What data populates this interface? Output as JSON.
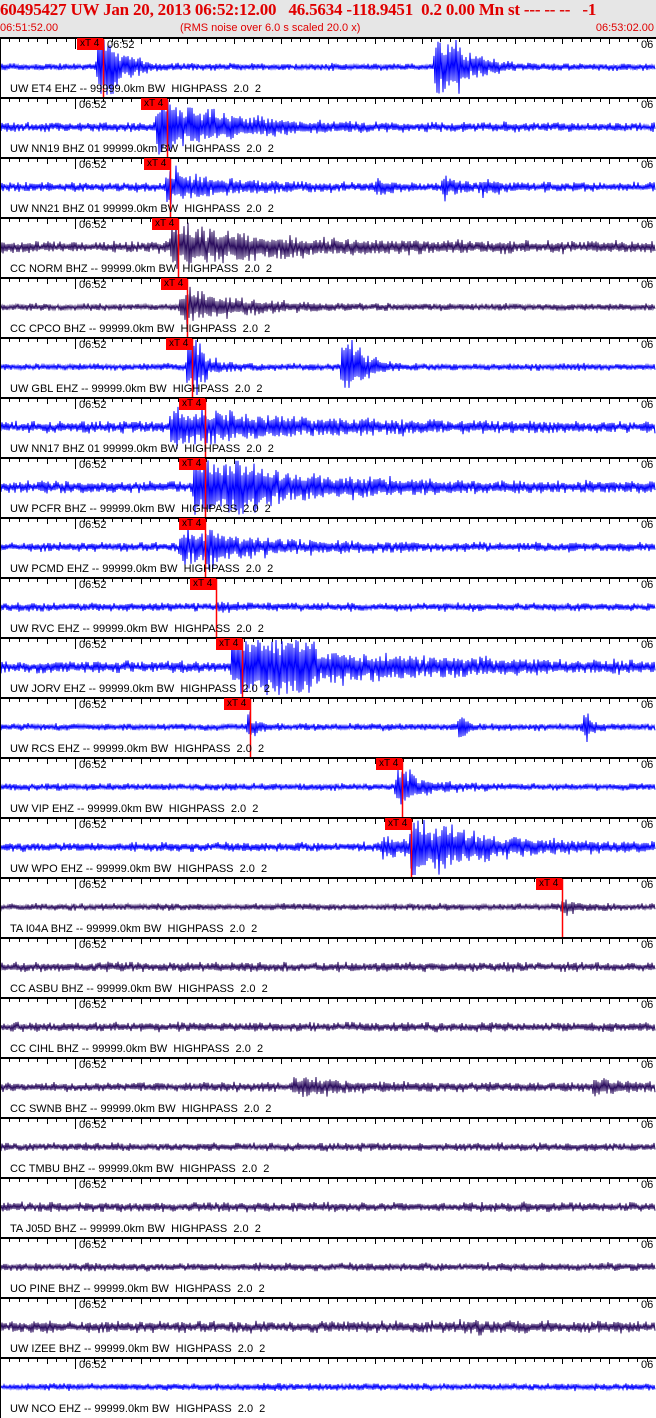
{
  "header": {
    "title": "60495427 UW Jan 20, 2013 06:52:12.00   46.5634 -118.9451  0.2 0.00 Mn st --- -- --   -1",
    "start_time": "06:51:52.00",
    "end_time": "06:53:02.00",
    "subtitle": "(RMS noise over 6.0 s scaled 20.0 x)"
  },
  "chart_data": {
    "type": "line",
    "title": "60495427 UW Jan 20, 2013 06:52:12.00",
    "xlim": [
      "06:51:52.00",
      "06:53:02.00"
    ],
    "tick_labels": {
      "minute": "06:52",
      "right": "06"
    },
    "colors": {
      "uw": "#0000ff",
      "network": "#2b0d5e",
      "pick": "#ff0000"
    },
    "traces": [
      {
        "label": "UW ET4 EHZ -- 99999.0km BW  HIGHPASS  2.0  2",
        "color": "#0000ff",
        "pick": {
          "label": "xT 4",
          "time": "06:52:03.0"
        }
      },
      {
        "label": "UW NN19 BHZ 01 99999.0km BW  HIGHPASS  2.0  2",
        "color": "#0000ff",
        "pick": {
          "label": "xT 4",
          "time": "06:52:09.8"
        }
      },
      {
        "label": "UW NN21 BHZ 01 99999.0km BW  HIGHPASS  2.0  2",
        "color": "#0000ff",
        "pick": {
          "label": "xT 4",
          "time": "06:52:10.1"
        }
      },
      {
        "label": "CC NORM BHZ -- 99999.0km BW  HIGHPASS  2.0  2",
        "color": "#2b0d5e",
        "pick": {
          "label": "xT 4",
          "time": "06:52:11.0"
        }
      },
      {
        "label": "CC CPCO BHZ -- 99999.0km BW  HIGHPASS  2.0  2",
        "color": "#2b0d5e",
        "pick": {
          "label": "xT 4",
          "time": "06:52:12.0"
        }
      },
      {
        "label": "UW GBL EHZ -- 99999.0km BW  HIGHPASS  2.0  2",
        "color": "#0000ff",
        "pick": {
          "label": "xT 4",
          "time": "06:52:12.5"
        }
      },
      {
        "label": "UW NN17 BHZ 01 99999.0km BW  HIGHPASS  2.0  2",
        "color": "#0000ff",
        "pick": {
          "label": "xT 4",
          "time": "06:52:13.9"
        }
      },
      {
        "label": "UW PCFR BHZ -- 99999.0km BW  HIGHPASS  2.0  2",
        "color": "#0000ff",
        "pick": {
          "label": "xT 4",
          "time": "06:52:13.9"
        }
      },
      {
        "label": "UW PCMD EHZ -- 99999.0km BW  HIGHPASS  2.0  2",
        "color": "#0000ff",
        "pick": {
          "label": "xT 4",
          "time": "06:52:13.9"
        }
      },
      {
        "label": "UW RVC EHZ -- 99999.0km BW  HIGHPASS  2.0  2",
        "color": "#0000ff",
        "pick": {
          "label": "xT 4",
          "time": "06:52:15.1"
        }
      },
      {
        "label": "UW JORV EHZ -- 99999.0km BW  HIGHPASS  2.0  2",
        "color": "#0000ff",
        "pick": {
          "label": "xT 4",
          "time": "06:52:17.8"
        }
      },
      {
        "label": "UW RCS EHZ -- 99999.0km BW  HIGHPASS  2.0  2",
        "color": "#0000ff",
        "pick": {
          "label": "xT 4",
          "time": "06:52:18.7"
        }
      },
      {
        "label": "UW VIP EHZ -- 99999.0km BW  HIGHPASS  2.0  2",
        "color": "#0000ff",
        "pick": {
          "label": "xT 4",
          "time": "06:52:34.9"
        }
      },
      {
        "label": "UW WPO EHZ -- 99999.0km BW  HIGHPASS  2.0  2",
        "color": "#0000ff",
        "pick": {
          "label": "xT 4",
          "time": "06:52:35.9"
        }
      },
      {
        "label": "TA I04A BHZ -- 99999.0km BW  HIGHPASS  2.0  2",
        "color": "#2b0d5e",
        "pick": {
          "label": "xT 4",
          "time": "06:52:52.0"
        }
      },
      {
        "label": "CC ASBU BHZ -- 99999.0km BW  HIGHPASS  2.0  2",
        "color": "#2b0d5e"
      },
      {
        "label": "CC CIHL BHZ -- 99999.0km BW  HIGHPASS  2.0  2",
        "color": "#2b0d5e"
      },
      {
        "label": "CC SWNB BHZ -- 99999.0km BW  HIGHPASS  2.0  2",
        "color": "#2b0d5e"
      },
      {
        "label": "CC TMBU BHZ -- 99999.0km BW  HIGHPASS  2.0  2",
        "color": "#2b0d5e"
      },
      {
        "label": "TA J05D BHZ -- 99999.0km BW  HIGHPASS  2.0  2",
        "color": "#2b0d5e"
      },
      {
        "label": "UO PINE BHZ -- 99999.0km BW  HIGHPASS  2.0  2",
        "color": "#2b0d5e"
      },
      {
        "label": "UW IZEE BHZ -- 99999.0km BW  HIGHPASS  2.0  2",
        "color": "#2b0d5e"
      },
      {
        "label": "UW NCO EHZ -- 99999.0km BW  HIGHPASS  2.0  2",
        "color": "#0000ff"
      }
    ]
  }
}
